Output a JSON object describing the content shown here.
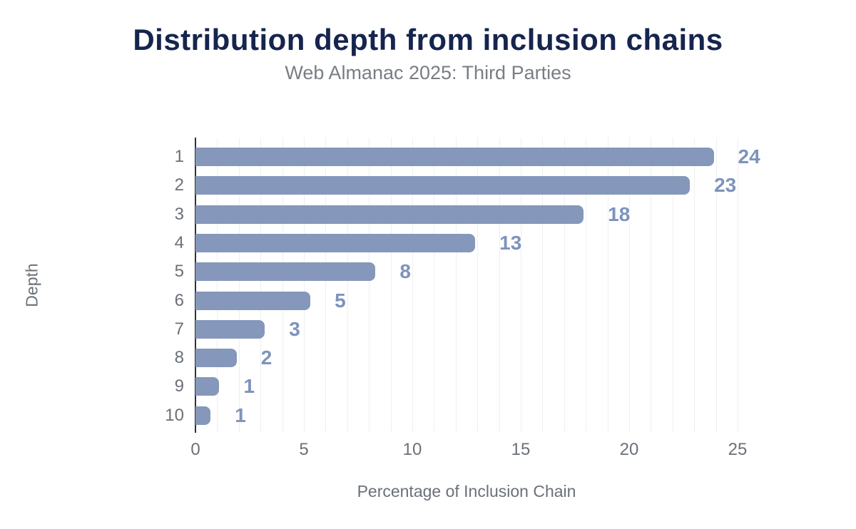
{
  "chart_data": {
    "type": "bar",
    "orientation": "horizontal",
    "title": "Distribution depth from inclusion chains",
    "subtitle": "Web Almanac 2025: Third Parties",
    "xlabel": "Percentage of Inclusion Chain",
    "ylabel": "Depth",
    "categories": [
      "1",
      "2",
      "3",
      "4",
      "5",
      "6",
      "7",
      "8",
      "9",
      "10"
    ],
    "values": [
      23.9,
      22.8,
      17.9,
      12.9,
      8.3,
      5.3,
      3.2,
      1.9,
      1.1,
      0.7
    ],
    "data_labels": [
      "24",
      "23",
      "18",
      "13",
      "8",
      "5",
      "3",
      "2",
      "1",
      "1"
    ],
    "xlim": [
      0,
      25
    ],
    "x_ticks": [
      0,
      5,
      10,
      15,
      20,
      25
    ],
    "grid": "vertical gridlines every 1 unit, no horizontal gridlines",
    "legend": "none",
    "colors": {
      "bar": "#8597BA",
      "data_label": "#7E93BC",
      "title": "#16254E",
      "subtitle": "#797D84",
      "axis_text": "#6B7078",
      "axis_line": "#2E3237",
      "gridline": "#EDEFF2",
      "background": "#FFFFFF"
    }
  }
}
